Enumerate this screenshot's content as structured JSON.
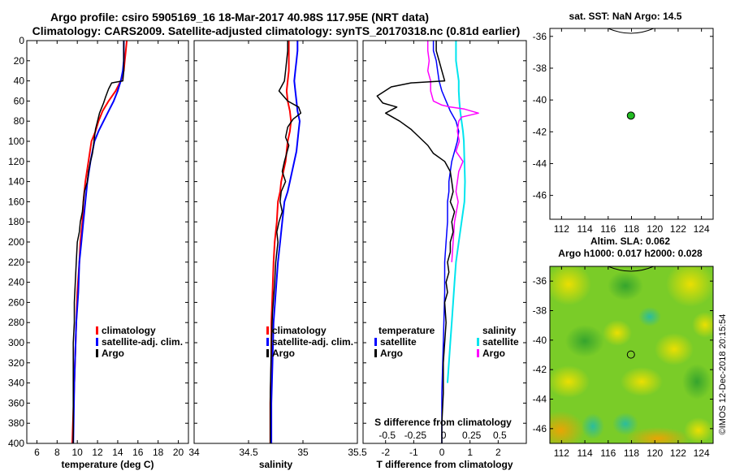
{
  "header": {
    "title_line1": "Argo profile: csiro 5905169_16 18-Mar-2017 40.98S 117.95E (NRT data)",
    "title_line2": "Climatology: CARS2009. Satellite-adjusted climatology: synTS_20170318.nc (0.81d earlier)"
  },
  "watermark": "©IMOS 12-Dec-2018 20:15:54",
  "colors": {
    "argo": "#000000",
    "climatology": "#ff0000",
    "satellite_adj_clim": "#0000ff",
    "t_satellite": "#0000ff",
    "s_satellite": "#00e5ee",
    "s_argo": "#ff00ff",
    "marker": "#22bb22"
  },
  "chart_data": [
    {
      "id": "temperature",
      "type": "line",
      "xlabel": "temperature (deg C)",
      "ylabel": "",
      "xlim": [
        5,
        21
      ],
      "ylim": [
        400,
        0
      ],
      "xticks": [
        6,
        8,
        10,
        12,
        14,
        16,
        18,
        20
      ],
      "yticks": [
        0,
        20,
        40,
        60,
        80,
        100,
        120,
        140,
        160,
        180,
        200,
        220,
        240,
        260,
        280,
        300,
        320,
        340,
        360,
        380,
        400
      ],
      "legend": [
        "climatology",
        "satellite-adj. clim.",
        "Argo"
      ],
      "series": [
        {
          "name": "climatology",
          "color": "#ff0000",
          "width": 2,
          "x": [
            14.9,
            14.8,
            14.7,
            14.6,
            14.3,
            13.8,
            13.1,
            12.5,
            12.1,
            11.8,
            11.4,
            11.1,
            10.8,
            10.6,
            10.5,
            10.3,
            10.2,
            10.0,
            9.9,
            9.8,
            9.7,
            9.6,
            9.5
          ],
          "y": [
            0,
            10,
            20,
            30,
            40,
            50,
            60,
            70,
            80,
            90,
            100,
            120,
            140,
            160,
            180,
            200,
            220,
            250,
            280,
            310,
            340,
            370,
            400
          ]
        },
        {
          "name": "satellite-adj. clim.",
          "color": "#0000ff",
          "width": 2,
          "x": [
            14.6,
            14.6,
            14.6,
            14.5,
            14.3,
            14.0,
            13.6,
            13.1,
            12.6,
            12.1,
            11.7,
            11.3,
            11.0,
            10.8,
            10.6,
            10.4,
            10.2,
            10.1,
            9.9,
            9.8,
            9.7,
            9.6
          ],
          "y": [
            0,
            10,
            20,
            30,
            40,
            50,
            60,
            70,
            80,
            90,
            100,
            120,
            140,
            160,
            180,
            200,
            220,
            250,
            280,
            310,
            340,
            400
          ]
        },
        {
          "name": "Argo",
          "color": "#000000",
          "width": 1.5,
          "x": [
            14.6,
            14.6,
            14.6,
            14.6,
            14.5,
            13.4,
            13.1,
            12.8,
            12.6,
            12.2,
            12.0,
            11.8,
            11.7,
            11.6,
            11.5,
            11.3,
            11.1,
            11.0,
            10.7,
            10.6,
            10.5,
            10.3,
            10.2,
            10.0,
            9.9,
            9.8,
            9.7,
            9.7,
            9.6,
            9.6,
            9.6
          ],
          "y": [
            0,
            10,
            20,
            30,
            40,
            42,
            48,
            56,
            62,
            72,
            80,
            88,
            96,
            104,
            112,
            120,
            130,
            140,
            150,
            160,
            170,
            180,
            190,
            200,
            220,
            240,
            260,
            280,
            300,
            340,
            400
          ]
        }
      ]
    },
    {
      "id": "salinity",
      "type": "line",
      "xlabel": "salinity",
      "ylabel": "",
      "xlim": [
        34,
        35.5
      ],
      "ylim": [
        400,
        0
      ],
      "xticks": [
        34,
        34.5,
        35,
        35.5
      ],
      "yticks": [
        0,
        20,
        40,
        60,
        80,
        100,
        120,
        140,
        160,
        180,
        200,
        220,
        240,
        260,
        280,
        300,
        320,
        340,
        360,
        380,
        400
      ],
      "legend": [
        "climatology",
        "satellite-adj. clim.",
        "Argo"
      ],
      "series": [
        {
          "name": "climatology",
          "color": "#ff0000",
          "width": 2,
          "x": [
            34.87,
            34.87,
            34.87,
            34.87,
            34.86,
            34.85,
            34.86,
            34.88,
            34.89,
            34.88,
            34.86,
            34.85,
            34.84,
            34.82,
            34.8,
            34.79,
            34.77,
            34.76,
            34.74,
            34.73,
            34.72,
            34.71,
            34.71,
            34.7,
            34.7
          ],
          "y": [
            0,
            10,
            20,
            30,
            40,
            50,
            60,
            70,
            80,
            90,
            100,
            110,
            120,
            130,
            140,
            150,
            160,
            180,
            200,
            220,
            250,
            280,
            320,
            360,
            400
          ]
        },
        {
          "name": "satellite-adj. clim.",
          "color": "#0000ff",
          "width": 2,
          "x": [
            34.95,
            34.95,
            34.94,
            34.93,
            34.92,
            34.93,
            34.94,
            34.95,
            34.97,
            34.96,
            34.95,
            34.94,
            34.92,
            34.9,
            34.88,
            34.86,
            34.83,
            34.81,
            34.79,
            34.77,
            34.75,
            34.73,
            34.72,
            34.71,
            34.71
          ],
          "y": [
            0,
            10,
            20,
            30,
            40,
            50,
            60,
            70,
            80,
            90,
            100,
            110,
            120,
            130,
            140,
            150,
            160,
            180,
            200,
            220,
            250,
            280,
            320,
            360,
            400
          ]
        },
        {
          "name": "Argo",
          "color": "#000000",
          "width": 1.5,
          "x": [
            34.86,
            34.86,
            34.85,
            34.84,
            34.83,
            34.78,
            34.86,
            34.96,
            34.98,
            34.91,
            34.86,
            34.84,
            34.87,
            34.85,
            34.83,
            34.81,
            34.84,
            34.8,
            34.79,
            34.81,
            34.78,
            34.76,
            34.77,
            34.75,
            34.74,
            34.72,
            34.71,
            34.7,
            34.7
          ],
          "y": [
            0,
            10,
            20,
            30,
            40,
            50,
            60,
            66,
            72,
            78,
            86,
            96,
            104,
            112,
            120,
            130,
            140,
            150,
            160,
            170,
            180,
            190,
            200,
            220,
            240,
            270,
            300,
            350,
            400
          ]
        }
      ]
    },
    {
      "id": "difference",
      "type": "line",
      "xlabel": "T difference from climatology",
      "xlabel_top": "S difference from climatology",
      "ylabel": "",
      "xlim": [
        -2.8,
        3.0
      ],
      "ylim": [
        400,
        0
      ],
      "xticks": [
        -2,
        -1,
        0,
        1,
        2
      ],
      "xticks_top_labels": [
        "-0.5",
        "-0.25",
        "0",
        "0.25",
        "0.5"
      ],
      "xticks_top_pos": [
        -2,
        -1,
        0,
        1,
        2
      ],
      "yticks": [
        0,
        20,
        40,
        60,
        80,
        100,
        120,
        140,
        160,
        180,
        200,
        220,
        240,
        260,
        280,
        300,
        320,
        340,
        360,
        380,
        400
      ],
      "legend_temperature": {
        "title": "temperature",
        "items": [
          "satellite",
          "Argo"
        ]
      },
      "legend_salinity": {
        "title": "salinity",
        "items": [
          "satellite",
          "Argo"
        ]
      },
      "series": [
        {
          "name": "T satellite",
          "color": "#0000ff",
          "width": 1.5,
          "x": [
            -0.3,
            -0.3,
            -0.2,
            -0.15,
            -0.1,
            0.0,
            0.15,
            0.3,
            0.5,
            0.6,
            0.55,
            0.45,
            0.35,
            0.3,
            0.25,
            0.25,
            0.2,
            0.2,
            0.15,
            0.1,
            0.1,
            0.05,
            0.0,
            0.0
          ],
          "y": [
            0,
            10,
            20,
            30,
            40,
            50,
            60,
            70,
            80,
            90,
            100,
            110,
            120,
            130,
            140,
            150,
            160,
            180,
            200,
            220,
            250,
            300,
            350,
            400
          ]
        },
        {
          "name": "S satellite",
          "color": "#00e5ee",
          "width": 2,
          "x": [
            0.5,
            0.5,
            0.5,
            0.55,
            0.6,
            0.6,
            0.62,
            0.65,
            0.7,
            0.75,
            0.78,
            0.8,
            0.82,
            0.8,
            0.7,
            0.6,
            0.5,
            0.45,
            0.4,
            0.35,
            0.3,
            0.25,
            0.2
          ],
          "y": [
            0,
            10,
            20,
            30,
            40,
            50,
            60,
            70,
            80,
            90,
            100,
            120,
            140,
            160,
            180,
            200,
            220,
            240,
            260,
            280,
            300,
            320,
            340
          ]
        },
        {
          "name": "S Argo",
          "color": "#ff00ff",
          "width": 1.5,
          "x": [
            -0.5,
            -0.5,
            -0.45,
            -0.5,
            -0.4,
            -0.4,
            -0.3,
            0.0,
            0.3,
            0.8,
            1.3,
            0.7,
            0.6,
            0.55,
            0.62,
            0.5,
            0.75,
            0.6,
            0.55,
            0.5,
            0.58,
            0.45,
            0.4,
            0.35
          ],
          "y": [
            0,
            10,
            20,
            30,
            40,
            50,
            60,
            64,
            66,
            68,
            72,
            76,
            80,
            90,
            100,
            110,
            120,
            130,
            140,
            150,
            160,
            180,
            200,
            220
          ]
        },
        {
          "name": "T Argo",
          "color": "#000000",
          "width": 1.5,
          "x": [
            -0.2,
            -0.2,
            -0.1,
            0.0,
            0.1,
            -1.1,
            -1.8,
            -2.3,
            -2.1,
            -1.6,
            -2.0,
            -1.5,
            -1.1,
            -0.8,
            -0.5,
            -0.3,
            0.1,
            0.3,
            0.35,
            0.4,
            0.3,
            0.45,
            0.35,
            0.4,
            0.3,
            0.3,
            0.2,
            0.25,
            0.15,
            0.2,
            0.1,
            0.15,
            0.1,
            0.05,
            0.05,
            0.0,
            0.0
          ],
          "y": [
            0,
            10,
            20,
            30,
            40,
            42,
            46,
            55,
            62,
            66,
            72,
            80,
            88,
            96,
            104,
            112,
            120,
            130,
            140,
            150,
            160,
            170,
            180,
            190,
            200,
            210,
            220,
            230,
            240,
            250,
            260,
            280,
            300,
            320,
            350,
            380,
            400
          ]
        }
      ]
    },
    {
      "id": "map_sst",
      "type": "scatter",
      "title": "sat. SST: NaN Argo: 14.5",
      "xlabel": "",
      "ylabel": "",
      "xlim": [
        111,
        125
      ],
      "ylim": [
        -47.5,
        -35.5
      ],
      "xticks": [
        112,
        114,
        116,
        118,
        120,
        122,
        124
      ],
      "yticks": [
        -36,
        -38,
        -40,
        -42,
        -44,
        -46
      ],
      "x": [
        117.95
      ],
      "y": [
        -40.98
      ]
    },
    {
      "id": "map_sla",
      "type": "heatmap",
      "title": "Altim. SLA: 0.062",
      "subtitle": "Argo h1000: 0.017 h2000: 0.028",
      "xlabel": "",
      "ylabel": "",
      "xlim": [
        111,
        125
      ],
      "ylim": [
        -47,
        -35
      ],
      "xticks": [
        112,
        114,
        116,
        118,
        120,
        122,
        124
      ],
      "yticks": [
        -36,
        -38,
        -40,
        -42,
        -44,
        -46
      ],
      "x": [
        117.95
      ],
      "y": [
        -40.98
      ]
    }
  ]
}
